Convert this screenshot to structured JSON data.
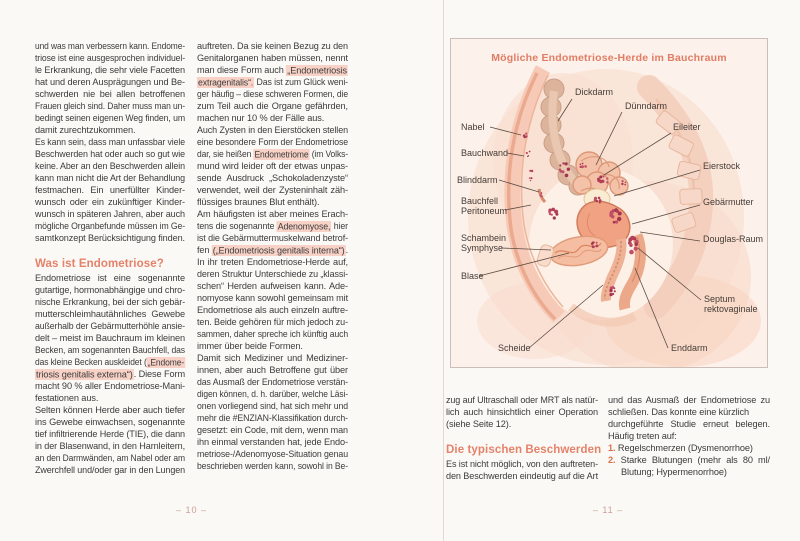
{
  "left_page": {
    "page_number": "– 10 –",
    "col1": [
      "und was man verbessern kann. Endome-",
      "triose ist eine ausgesprochen individuel-",
      "le Erkrankung, die sehr viele Facetten",
      "hat und deren Ausprägungen und Be-",
      "schwerden nie bei allen betroffenen",
      "Frauen gleich sind. Daher muss man un-",
      "bedingt seinen eigenen Weg finden, um",
      {
        "t": "damit zurechtzukommen.",
        "end": true
      },
      "Es kann sein, dass man unfassbar viele",
      "Beschwerden hat oder auch so gut wie",
      "keine. Aber an den Beschwerden allein",
      "kann man nicht die Art der Behandlung",
      "festmachen. Ein unerfüllter Kinder-",
      "wunsch oder ein zukünftiger Kinder-",
      "wunsch in späteren Jahren, aber auch",
      "mögliche Organbefunde müssen im Ge-",
      {
        "t": "samtkonzept Berücksichtigung finden.",
        "end": true
      },
      {
        "h2": "Was ist Endometriose?"
      },
      "Endometriose ist eine sogenannte",
      "gutartige, hormonabhängige und chro-",
      "nische Erkrankung, bei der sich gebär-",
      "mutterschleimhautähnliches Gewebe",
      "außerhalb der Gebärmutterhöhle ansie-",
      "delt – meist im Bauchraum im kleinen",
      "Becken, am sogenannten Bauchfell, das",
      {
        "seg": [
          [
            "das kleine Becken auskleidet (",
            ""
          ],
          [
            "„Endome-",
            "hl"
          ]
        ]
      },
      {
        "seg": [
          [
            "triosis genitalis externa“)",
            "hl"
          ],
          [
            ". Diese Form",
            ""
          ]
        ]
      },
      "macht 90 % aller Endometriose-Mani-",
      {
        "t": "festationen aus.",
        "end": true
      },
      "Selten können Herde aber auch tiefer",
      "ins Gewebe einwachsen, sogenannte",
      "tief infiltrierende Herde (TIE), die dann",
      "in der Blasenwand, in den Harnleitern,",
      "an den Darmwänden, am Nabel oder am",
      "Zwerchfell und/oder gar in den Lungen"
    ],
    "col2": [
      "auftreten. Da sie keinen Bezug zu den",
      "Genitalorganen haben müssen, nennt",
      {
        "seg": [
          [
            "man diese Form auch ",
            ""
          ],
          [
            "„Endometriosis",
            "hl"
          ]
        ]
      },
      {
        "seg": [
          [
            "extragenitalis“.",
            "hl"
          ],
          [
            " Das ist zum Glück weni-",
            ""
          ]
        ]
      },
      "ger häufig – diese schweren Formen, die",
      "zum Teil auch die Organe gefährden,",
      {
        "t": "machen nur 10 % der Fälle aus.",
        "end": true
      },
      "Auch Zysten in den Eierstöcken stellen",
      "eine besondere Form der Endometriose",
      {
        "seg": [
          [
            "dar, sie heißen ",
            ""
          ],
          [
            "Endometriome",
            "hl"
          ],
          [
            " (im Volks-",
            ""
          ]
        ]
      },
      "mund wird leider oft der etwas unpas-",
      "sende Ausdruck „Schokoladenzyste“",
      "verwendet, weil der Zysteninhalt zäh-",
      {
        "t": "flüssiges braunes Blut enthält).",
        "end": true
      },
      "Am häufigsten ist aber meines Erach-",
      {
        "seg": [
          [
            "tens die sogenannte ",
            ""
          ],
          [
            "Adenomyose,",
            "hl"
          ],
          [
            " hier",
            ""
          ]
        ]
      },
      "ist die Gebärmuttermuskelwand betrof-",
      {
        "seg": [
          [
            "fen ",
            ""
          ],
          [
            "(„Endometriosis genitalis interna“)",
            "hl"
          ],
          [
            ".",
            ""
          ]
        ]
      },
      "In ihr treten Endometriose-Herde auf,",
      "deren Struktur Unterschiede zu „klassi-",
      "schen“ Herden aufweisen kann. Ade-",
      "nomyose kann sowohl gemeinsam mit",
      "Endometriose als auch einzeln auftre-",
      "ten. Beide gehören für mich jedoch zu-",
      "sammen, daher spreche ich künftig auch",
      {
        "t": "immer über beide Formen.",
        "end": true
      },
      "Damit sich Mediziner und Mediziner-",
      "innen, aber auch Betroffene gut über",
      "das Ausmaß der Endometriose verstän-",
      "digen können, d. h. darüber, welche Läsi-",
      "onen vorliegend sind, hat sich mehr und",
      "mehr die #ENZIAN-Klassifikation durch-",
      "gesetzt: ein Code, mit dem, wenn man",
      "ihn einmal verstanden hat, jede Endo-",
      "metriose-/Adenomyose-Situation genau",
      "beschrieben werden kann, sowohl in Be-"
    ]
  },
  "right_page": {
    "page_number": "– 11 –",
    "figure": {
      "title": "Mögliche Endometriose-Herde im Bauchraum",
      "labels": {
        "dickdarm": "Dickdarm",
        "duenndarm": "Dünndarm",
        "nabel": "Nabel",
        "eileiter": "Eileiter",
        "bauchwand": "Bauchwand",
        "eierstock": "Eierstock",
        "blinddarm": "Blinddarm",
        "bauchfell1": "Bauchfell",
        "bauchfell2": "Peritoneum",
        "gebaermutter": "Gebärmutter",
        "douglas": "Douglas-Raum",
        "schambein1": "Schambein",
        "schambein2": "Symphyse",
        "blase": "Blase",
        "septum1": "Septum",
        "septum2": "rektovaginale",
        "scheide": "Scheide",
        "enddarm": "Enddarm"
      }
    },
    "col1": [
      "zug auf Ultraschall oder MRT als natür-",
      "lich auch hinsichtlich einer Operation",
      {
        "t": "(siehe Seite 12).",
        "end": true
      },
      {
        "h2": "Die typischen Beschwerden"
      },
      "Es ist nicht möglich, von den auftreten-",
      "den Beschwerden eindeutig auf die Art"
    ],
    "col2": [
      "und das Ausmaß der Endometriose zu",
      "schließen. Das konnte eine kürzlich",
      "durchgeführte Studie erneut belegen.",
      {
        "t": "Häufig treten auf:",
        "end": true
      },
      {
        "seg": [
          [
            "1. ",
            "num"
          ],
          [
            "Regelschmerzen (Dysmenorrhoe)",
            ""
          ]
        ],
        "end": true
      },
      {
        "seg": [
          [
            "2. ",
            "num"
          ],
          [
            "Starke Blutungen (mehr als 80 ml/",
            ""
          ]
        ]
      },
      {
        "t": "Blutung; Hypermenorrhoe)",
        "ind": 13,
        "end": true
      }
    ]
  }
}
